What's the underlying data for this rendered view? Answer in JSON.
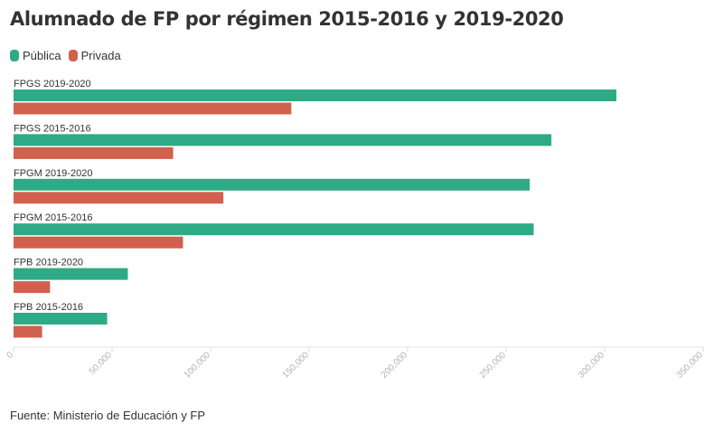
{
  "title": "Alumnado de FP por régimen 2015-2016 y 2019-2020",
  "source": "Fuente: Ministerio de Educación y FP",
  "colors": {
    "publica": "#2eab86",
    "privada": "#d2604f"
  },
  "legend": [
    {
      "label": "Pública",
      "color": "#2eab86"
    },
    {
      "label": "Privada",
      "color": "#d2604f"
    }
  ],
  "chart_data": {
    "type": "bar",
    "orientation": "horizontal",
    "categories": [
      "FPGS 2019-2020",
      "FPGS 2015-2016",
      "FPGM 2019-2020",
      "FPGM 2015-2016",
      "FPB 2019-2020",
      "FPB 2015-2016"
    ],
    "series": [
      {
        "name": "Pública",
        "color": "#2eab86",
        "values": [
          306000,
          273000,
          262000,
          264000,
          58000,
          47500
        ]
      },
      {
        "name": "Privada",
        "color": "#d2604f",
        "values": [
          141000,
          81000,
          106500,
          86000,
          18500,
          14500
        ]
      }
    ],
    "xlim": [
      0,
      350000
    ],
    "xticks": [
      "0",
      "50,000",
      "100,000",
      "150,000",
      "200,000",
      "250,000",
      "300,000",
      "350,000"
    ],
    "xtick_values": [
      0,
      50000,
      100000,
      150000,
      200000,
      250000,
      300000,
      350000
    ],
    "legend_position": "top-left",
    "grid": false
  }
}
